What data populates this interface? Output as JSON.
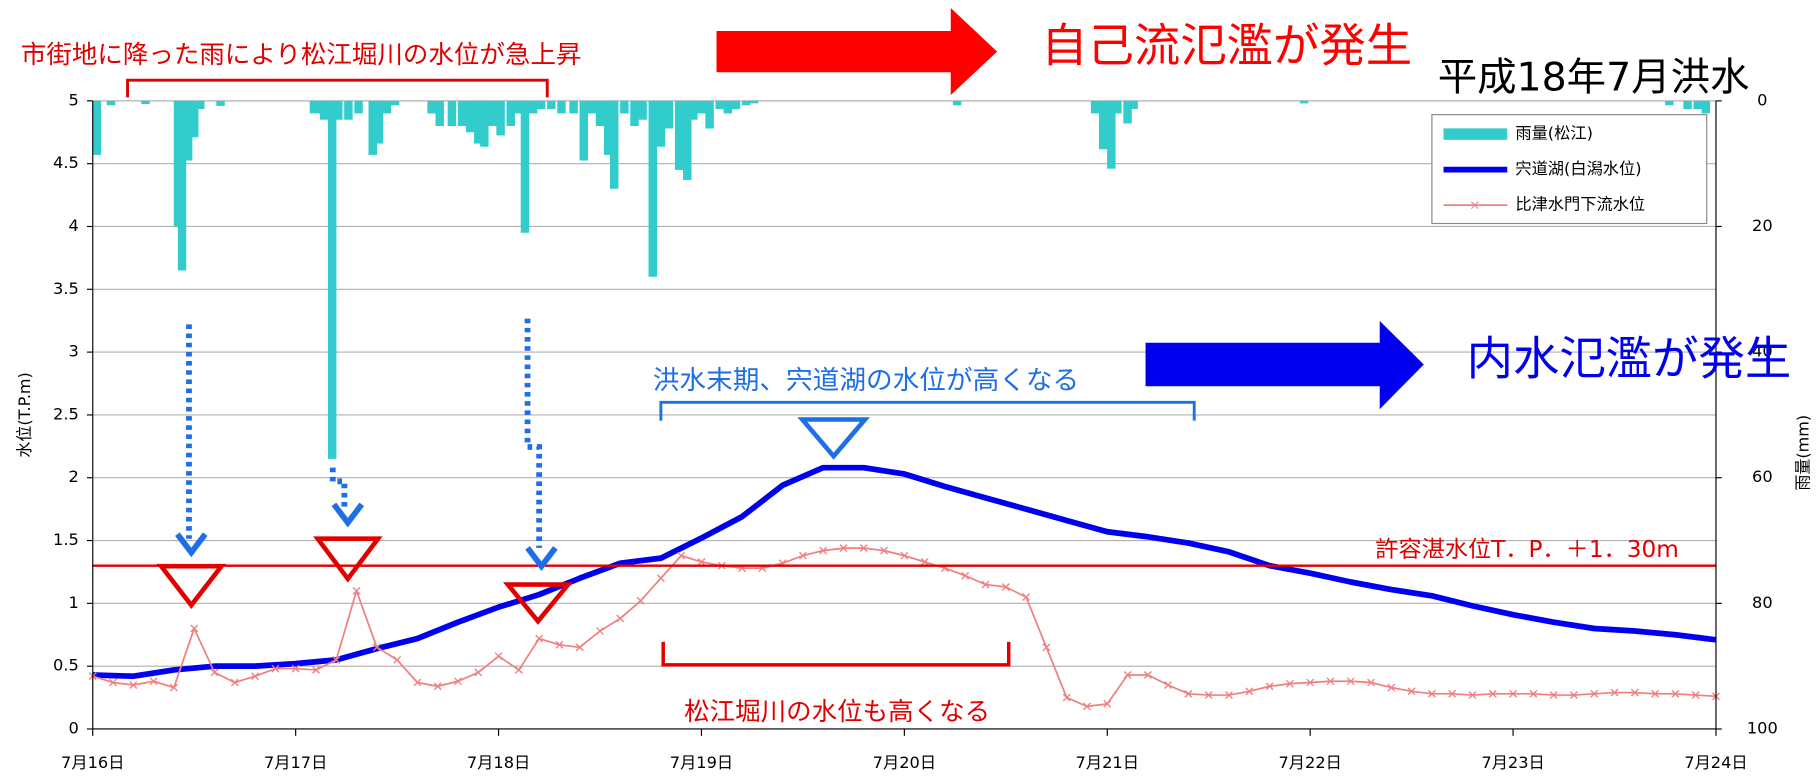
{
  "chart_data": {
    "type": "combo",
    "title": "平成18年7月洪水",
    "ylabel": "水位(T.P.m)",
    "y2label": "雨量(mm)",
    "annotations": [
      "自己流氾濫が発生",
      "内水氾濫が発生",
      "市街地に降った雨により松江堀川の水位が急上昇",
      "洪水末期、宍道湖の水位が高くなる",
      "松江堀川の水位も高くなる"
    ],
    "xlim": [
      0,
      8
    ],
    "xticks": [
      {
        "value": 0,
        "label": "7月16日"
      },
      {
        "value": 1,
        "label": "7月17日"
      },
      {
        "value": 2,
        "label": "7月18日"
      },
      {
        "value": 3,
        "label": "7月19日"
      },
      {
        "value": 4,
        "label": "7月20日"
      },
      {
        "value": 5,
        "label": "7月21日"
      },
      {
        "value": 6,
        "label": "7月22日"
      },
      {
        "value": 7,
        "label": "7月23日"
      },
      {
        "value": 8,
        "label": "7月24日"
      }
    ],
    "ylim": [
      0,
      5
    ],
    "yticks": [
      0,
      0.5,
      1,
      1.5,
      2,
      2.5,
      3,
      3.5,
      4,
      4.5,
      5
    ],
    "y2lim": [
      0,
      100
    ],
    "y2ticks": [
      0,
      20,
      40,
      60,
      80,
      100
    ],
    "y2_inverted": true,
    "grid": true,
    "legend": "upper right",
    "hlines": [
      {
        "value": 1.3,
        "label": "許容湛水位T．P．＋1．30m",
        "color": "#e00000"
      }
    ],
    "series": [
      {
        "name": "雨量(松江)",
        "kind": "bar",
        "axis": "y2",
        "color": "#33cccc",
        "x": [
          0.02,
          0.09,
          0.26,
          0.42,
          0.44,
          0.47,
          0.5,
          0.53,
          0.63,
          1.09,
          1.12,
          1.14,
          1.18,
          1.21,
          1.26,
          1.31,
          1.38,
          1.41,
          1.45,
          1.49,
          1.67,
          1.71,
          1.77,
          1.82,
          1.86,
          1.9,
          1.93,
          1.97,
          2.01,
          2.06,
          2.1,
          2.13,
          2.17,
          2.21,
          2.26,
          2.31,
          2.37,
          2.42,
          2.46,
          2.5,
          2.54,
          2.57,
          2.62,
          2.67,
          2.71,
          2.76,
          2.8,
          2.84,
          2.89,
          2.93,
          2.96,
          3.0,
          3.04,
          3.09,
          3.13,
          3.17,
          3.22,
          3.26,
          4.26,
          4.94,
          4.98,
          5.02,
          5.05,
          5.1,
          5.13,
          5.97,
          7.77,
          7.86,
          7.91,
          7.95
        ],
        "values": [
          8.6,
          0.7,
          0.5,
          20,
          27,
          9.5,
          5.8,
          1.3,
          0.8,
          2,
          2,
          3,
          57,
          3,
          3,
          2,
          8.6,
          6.8,
          2,
          0.7,
          2,
          4,
          4,
          4,
          5,
          6.8,
          7.3,
          4,
          5.5,
          4,
          2,
          21,
          2,
          1.3,
          1.3,
          2,
          2,
          9.5,
          2,
          4,
          8.6,
          14,
          2,
          4,
          3,
          28,
          7.3,
          4.4,
          11,
          12.6,
          3,
          2,
          4.4,
          1.3,
          2,
          1.3,
          0.7,
          0.4,
          0.7,
          2,
          7.7,
          10.8,
          2,
          3.6,
          1.3,
          0.4,
          0.7,
          1.3,
          1.3,
          2
        ]
      },
      {
        "name": "宍道湖(白潟水位)",
        "kind": "line",
        "color": "#0000ee",
        "x": [
          0,
          0.2,
          0.4,
          0.6,
          0.8,
          1,
          1.2,
          1.4,
          1.6,
          1.8,
          2,
          2.2,
          2.4,
          2.6,
          2.8,
          3,
          3.2,
          3.4,
          3.6,
          3.8,
          4,
          4.2,
          4.4,
          4.6,
          4.8,
          5,
          5.2,
          5.4,
          5.6,
          5.8,
          6,
          6.2,
          6.4,
          6.6,
          6.8,
          7,
          7.2,
          7.4,
          7.6,
          7.8,
          8
        ],
        "values": [
          0.43,
          0.42,
          0.47,
          0.5,
          0.5,
          0.52,
          0.55,
          0.64,
          0.72,
          0.85,
          0.97,
          1.07,
          1.2,
          1.32,
          1.36,
          1.52,
          1.69,
          1.94,
          2.08,
          2.08,
          2.03,
          1.93,
          1.84,
          1.75,
          1.66,
          1.57,
          1.53,
          1.48,
          1.41,
          1.3,
          1.24,
          1.17,
          1.11,
          1.06,
          0.98,
          0.91,
          0.85,
          0.8,
          0.78,
          0.75,
          0.71
        ]
      },
      {
        "name": "比津水門下流水位",
        "kind": "line-marker",
        "color": "#f08080",
        "x": [
          0,
          0.1,
          0.2,
          0.3,
          0.4,
          0.5,
          0.6,
          0.7,
          0.8,
          0.9,
          1,
          1.1,
          1.2,
          1.3,
          1.4,
          1.5,
          1.6,
          1.7,
          1.8,
          1.9,
          2,
          2.1,
          2.2,
          2.3,
          2.4,
          2.5,
          2.6,
          2.7,
          2.8,
          2.9,
          3,
          3.1,
          3.2,
          3.3,
          3.4,
          3.5,
          3.6,
          3.7,
          3.8,
          3.9,
          4,
          4.1,
          4.2,
          4.3,
          4.4,
          4.5,
          4.6,
          4.7,
          4.8,
          4.9,
          5,
          5.1,
          5.2,
          5.3,
          5.4,
          5.5,
          5.6,
          5.7,
          5.8,
          5.9,
          6,
          6.1,
          6.2,
          6.3,
          6.4,
          6.5,
          6.6,
          6.7,
          6.8,
          6.9,
          7,
          7.1,
          7.2,
          7.3,
          7.4,
          7.5,
          7.6,
          7.7,
          7.8,
          7.9,
          8
        ],
        "values": [
          0.42,
          0.37,
          0.35,
          0.38,
          0.33,
          0.8,
          0.45,
          0.37,
          0.42,
          0.48,
          0.48,
          0.47,
          0.55,
          1.1,
          0.65,
          0.55,
          0.37,
          0.34,
          0.38,
          0.45,
          0.58,
          0.47,
          0.72,
          0.67,
          0.65,
          0.78,
          0.88,
          1.02,
          1.2,
          1.38,
          1.33,
          1.3,
          1.28,
          1.28,
          1.32,
          1.38,
          1.42,
          1.44,
          1.44,
          1.42,
          1.38,
          1.33,
          1.28,
          1.22,
          1.15,
          1.13,
          1.05,
          0.65,
          0.25,
          0.18,
          0.2,
          0.43,
          0.43,
          0.35,
          0.28,
          0.27,
          0.27,
          0.3,
          0.34,
          0.36,
          0.37,
          0.38,
          0.38,
          0.37,
          0.33,
          0.3,
          0.28,
          0.28,
          0.27,
          0.28,
          0.28,
          0.28,
          0.27,
          0.27,
          0.28,
          0.29,
          0.29,
          0.28,
          0.28,
          0.27,
          0.26
        ]
      }
    ]
  }
}
